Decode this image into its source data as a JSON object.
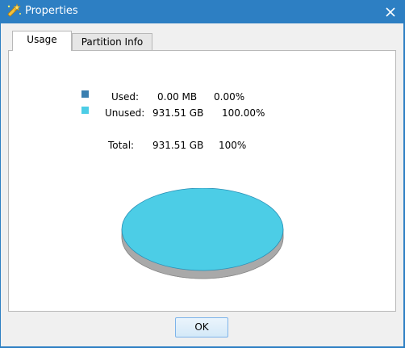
{
  "window": {
    "title": "Properties",
    "title_icon": "wand-icon",
    "close_icon": "close-icon"
  },
  "tabs": [
    {
      "label": "Usage",
      "active": true
    },
    {
      "label": "Partition Info",
      "active": false
    }
  ],
  "usage": {
    "used_label": "Used:",
    "used_size": "0.00 MB",
    "used_percent": "0.00%",
    "unused_label": "Unused:",
    "unused_size": "931.51 GB",
    "unused_percent": "100.00%",
    "total_label": "Total:",
    "total_size": "931.51 GB",
    "total_percent": "100%"
  },
  "chart_data": {
    "type": "pie",
    "categories": [
      "Used",
      "Unused"
    ],
    "values": [
      0.0,
      100.0
    ]
  },
  "colors": {
    "titlebar": "#2d7fc3",
    "used": "#3a7fb0",
    "unused": "#4ccde6",
    "pie_shadow": "#a9a9a9"
  },
  "buttons": {
    "ok_label": "OK"
  }
}
